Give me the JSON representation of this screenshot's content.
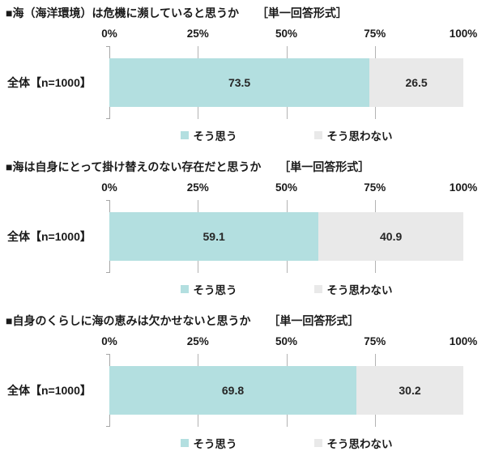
{
  "colors": {
    "agree": "#b3dfe0",
    "disagree": "#e9e9e9",
    "grid": "#b3b3b3",
    "text": "#1a1a1a"
  },
  "axis_ticks": [
    "0%",
    "25%",
    "50%",
    "75%",
    "100%"
  ],
  "row_label": "全体【n=1000】",
  "legend": {
    "agree_label": "そう思う",
    "disagree_label": "そう思わない"
  },
  "charts": [
    {
      "title": "■海（海洋環境）は危機に瀕していると思うか",
      "format": "［単一回答形式］",
      "agree_pct": 73.5,
      "disagree_pct": 26.5,
      "agree_value": "73.5",
      "disagree_value": "26.5"
    },
    {
      "title": "■海は自身にとって掛け替えのない存在だと思うか",
      "format": "［単一回答形式］",
      "agree_pct": 59.1,
      "disagree_pct": 40.9,
      "agree_value": "59.1",
      "disagree_value": "40.9"
    },
    {
      "title": "■自身のくらしに海の恵みは欠かせないと思うか",
      "format": "［単一回答形式］",
      "agree_pct": 69.8,
      "disagree_pct": 30.2,
      "agree_value": "69.8",
      "disagree_value": "30.2"
    }
  ],
  "chart_data": [
    {
      "type": "bar",
      "orientation": "horizontal",
      "stacked": true,
      "title": "海（海洋環境）は危機に瀕していると思うか",
      "format_note": "単一回答形式",
      "categories": [
        "全体【n=1000】"
      ],
      "series": [
        {
          "name": "そう思う",
          "values": [
            73.5
          ],
          "color": "#b3dfe0"
        },
        {
          "name": "そう思わない",
          "values": [
            26.5
          ],
          "color": "#e9e9e9"
        }
      ],
      "xlim": [
        0,
        100
      ],
      "x_tick_labels": [
        "0%",
        "25%",
        "50%",
        "75%",
        "100%"
      ],
      "grid": true,
      "legend_position": "bottom",
      "data_labels": true
    },
    {
      "type": "bar",
      "orientation": "horizontal",
      "stacked": true,
      "title": "海は自身にとって掛け替えのない存在だと思うか",
      "format_note": "単一回答形式",
      "categories": [
        "全体【n=1000】"
      ],
      "series": [
        {
          "name": "そう思う",
          "values": [
            59.1
          ],
          "color": "#b3dfe0"
        },
        {
          "name": "そう思わない",
          "values": [
            40.9
          ],
          "color": "#e9e9e9"
        }
      ],
      "xlim": [
        0,
        100
      ],
      "x_tick_labels": [
        "0%",
        "25%",
        "50%",
        "75%",
        "100%"
      ],
      "grid": true,
      "legend_position": "bottom",
      "data_labels": true
    },
    {
      "type": "bar",
      "orientation": "horizontal",
      "stacked": true,
      "title": "自身のくらしに海の恵みは欠かせないと思うか",
      "format_note": "単一回答形式",
      "categories": [
        "全体【n=1000】"
      ],
      "series": [
        {
          "name": "そう思う",
          "values": [
            69.8
          ],
          "color": "#b3dfe0"
        },
        {
          "name": "そう思わない",
          "values": [
            30.2
          ],
          "color": "#e9e9e9"
        }
      ],
      "xlim": [
        0,
        100
      ],
      "x_tick_labels": [
        "0%",
        "25%",
        "50%",
        "75%",
        "100%"
      ],
      "grid": true,
      "legend_position": "bottom",
      "data_labels": true
    }
  ]
}
